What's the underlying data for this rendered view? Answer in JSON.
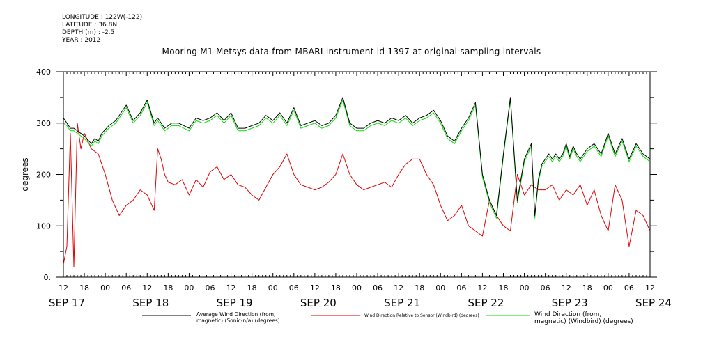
{
  "meta": {
    "longitude": "LONGITUDE : 122W(-122)",
    "latitude": "LATITUDE : 36.8N",
    "depth": "DEPTH (m) : -2.5",
    "year": "YEAR : 2012"
  },
  "chart_data": {
    "type": "line",
    "title": "Mooring M1 Metsys data from MBARI instrument id 1397 at original sampling intervals",
    "ylabel": "degrees",
    "ylim": [
      0,
      400
    ],
    "yticks": [
      0,
      100,
      200,
      300,
      400
    ],
    "xlim_hours": [
      0,
      168
    ],
    "xtick_labels": [
      "12",
      "18",
      "00",
      "06",
      "12",
      "18",
      "00",
      "06",
      "12",
      "18",
      "00",
      "06",
      "12",
      "18",
      "00",
      "06",
      "12",
      "18",
      "00",
      "06",
      "12",
      "18",
      "00",
      "06",
      "12",
      "18",
      "00",
      "06",
      "12"
    ],
    "day_labels": [
      "SEP 17",
      "SEP 18",
      "SEP 19",
      "SEP 20",
      "SEP 21",
      "SEP 22",
      "SEP 23",
      "SEP 24"
    ],
    "colors": {
      "avg": "#000000",
      "relative": "#e00000",
      "windbird": "#00e000"
    },
    "series": [
      {
        "name": "Average Wind Direction (from, magnetic) (Sonic-n/a) (degrees)",
        "color": "#000000",
        "x": [
          0,
          1,
          2,
          3,
          4,
          6,
          8,
          9,
          10,
          11,
          13,
          15,
          18,
          20,
          22,
          24,
          26,
          27,
          28,
          29,
          30,
          31,
          33,
          36,
          38,
          40,
          42,
          44,
          46,
          48,
          50,
          52,
          54,
          56,
          58,
          60,
          62,
          64,
          66,
          68,
          70,
          72,
          74,
          76,
          78,
          80,
          82,
          84,
          86,
          88,
          90,
          92,
          94,
          96,
          98,
          100,
          102,
          104,
          106,
          108,
          110,
          112,
          114,
          116,
          118,
          120,
          122,
          124,
          126,
          128,
          130,
          132,
          134,
          135,
          136,
          137,
          138,
          139,
          140,
          141,
          142,
          143,
          144,
          145,
          146,
          147,
          148,
          150,
          152,
          154,
          156,
          158,
          160,
          162,
          164,
          166,
          168
        ],
        "y": [
          310,
          300,
          290,
          290,
          285,
          275,
          260,
          270,
          265,
          280,
          295,
          305,
          335,
          305,
          320,
          345,
          300,
          310,
          300,
          290,
          295,
          300,
          300,
          290,
          310,
          305,
          310,
          320,
          305,
          320,
          290,
          290,
          295,
          300,
          315,
          305,
          320,
          300,
          330,
          295,
          300,
          305,
          295,
          300,
          315,
          350,
          300,
          290,
          290,
          300,
          305,
          300,
          310,
          305,
          315,
          300,
          310,
          315,
          325,
          305,
          275,
          265,
          290,
          310,
          340,
          200,
          150,
          120,
          240,
          350,
          150,
          230,
          260,
          120,
          190,
          220,
          230,
          240,
          230,
          240,
          230,
          240,
          260,
          235,
          255,
          240,
          230,
          250,
          260,
          240,
          280,
          240,
          270,
          230,
          260,
          240,
          230
        ]
      },
      {
        "name": "Wind Direction Relative to Sensor (Windbird) (degrees)",
        "color": "#e00000",
        "x": [
          0,
          1,
          2,
          3,
          4,
          5,
          6,
          8,
          10,
          12,
          14,
          16,
          18,
          20,
          22,
          24,
          26,
          27,
          28,
          29,
          30,
          32,
          34,
          36,
          38,
          40,
          42,
          44,
          46,
          48,
          50,
          52,
          54,
          56,
          58,
          60,
          62,
          64,
          66,
          68,
          70,
          72,
          74,
          76,
          78,
          80,
          82,
          84,
          86,
          88,
          90,
          92,
          94,
          96,
          98,
          100,
          102,
          104,
          106,
          108,
          110,
          112,
          114,
          116,
          118,
          120,
          122,
          124,
          126,
          128,
          130,
          132,
          134,
          136,
          138,
          140,
          142,
          144,
          146,
          148,
          150,
          152,
          154,
          156,
          158,
          160,
          162,
          164,
          166,
          168
        ],
        "y": [
          25,
          60,
          280,
          20,
          300,
          250,
          280,
          250,
          240,
          200,
          150,
          120,
          140,
          150,
          170,
          160,
          130,
          250,
          230,
          200,
          185,
          180,
          190,
          160,
          190,
          175,
          205,
          215,
          190,
          200,
          180,
          175,
          160,
          150,
          175,
          200,
          215,
          240,
          200,
          180,
          175,
          170,
          175,
          185,
          200,
          240,
          200,
          180,
          170,
          175,
          180,
          185,
          175,
          200,
          220,
          230,
          230,
          200,
          180,
          140,
          110,
          120,
          140,
          100,
          90,
          80,
          150,
          120,
          100,
          90,
          200,
          160,
          180,
          170,
          170,
          180,
          150,
          170,
          160,
          180,
          140,
          170,
          120,
          90,
          180,
          150,
          60,
          130,
          120,
          90
        ]
      },
      {
        "name": "Wind Direction (from, magnetic) (Windbird) (degrees)",
        "color": "#00e000",
        "x": [
          0,
          1,
          2,
          3,
          4,
          6,
          8,
          9,
          10,
          11,
          13,
          15,
          18,
          20,
          22,
          24,
          26,
          27,
          28,
          29,
          30,
          31,
          33,
          36,
          38,
          40,
          42,
          44,
          46,
          48,
          50,
          52,
          54,
          56,
          58,
          60,
          62,
          64,
          66,
          68,
          70,
          72,
          74,
          76,
          78,
          80,
          82,
          84,
          86,
          88,
          90,
          92,
          94,
          96,
          98,
          100,
          102,
          104,
          106,
          108,
          110,
          112,
          114,
          116,
          118,
          120,
          122,
          124,
          126,
          128,
          130,
          132,
          134,
          135,
          136,
          137,
          138,
          139,
          140,
          141,
          142,
          143,
          144,
          145,
          146,
          147,
          148,
          150,
          152,
          154,
          156,
          158,
          160,
          162,
          164,
          166,
          168
        ],
        "y": [
          300,
          295,
          285,
          285,
          280,
          270,
          255,
          265,
          260,
          275,
          290,
          300,
          330,
          300,
          315,
          340,
          295,
          305,
          295,
          285,
          290,
          295,
          295,
          285,
          305,
          300,
          305,
          315,
          300,
          315,
          285,
          285,
          290,
          295,
          310,
          300,
          315,
          295,
          325,
          290,
          295,
          300,
          290,
          295,
          310,
          345,
          295,
          285,
          285,
          295,
          300,
          295,
          305,
          300,
          310,
          295,
          305,
          310,
          320,
          300,
          270,
          260,
          285,
          305,
          335,
          195,
          145,
          115,
          235,
          345,
          145,
          225,
          255,
          115,
          185,
          215,
          225,
          235,
          225,
          235,
          225,
          235,
          255,
          230,
          250,
          235,
          225,
          245,
          255,
          235,
          275,
          235,
          265,
          225,
          255,
          235,
          225
        ]
      }
    ],
    "legend_placement": "bottom"
  }
}
